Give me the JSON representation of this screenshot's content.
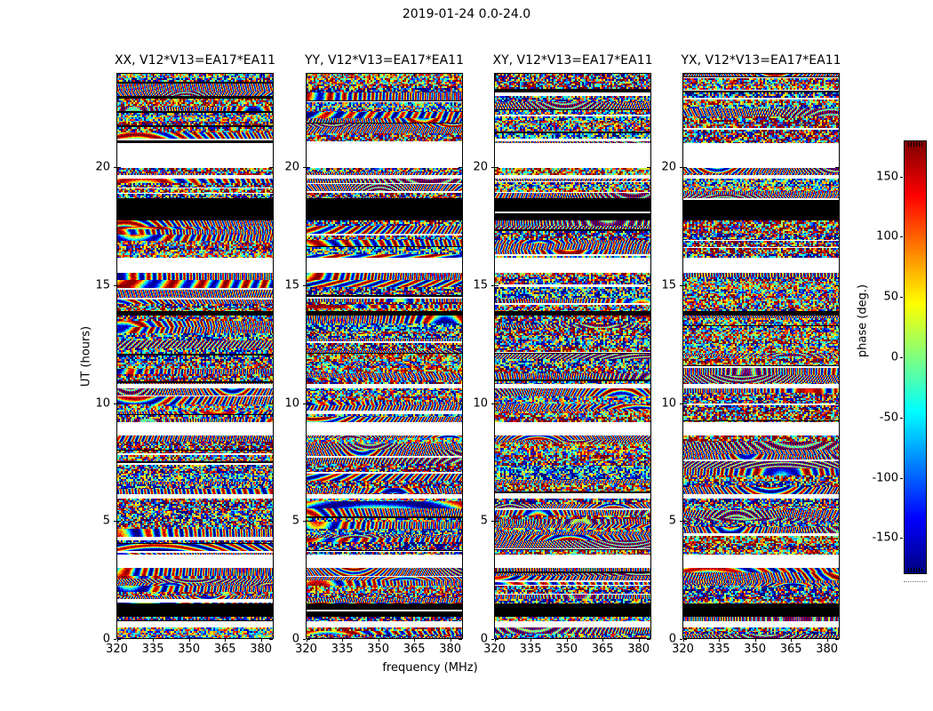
{
  "figure": {
    "title": "2019-01-24 0.0-24.0"
  },
  "chart_data": {
    "type": "heatmap",
    "title": "2019-01-24 0.0-24.0",
    "xlabel": "frequency (MHz)",
    "ylabel": "UT (hours)",
    "x_range": [
      319.8,
      385.3
    ],
    "y_range": [
      0,
      24
    ],
    "xticks": [
      320,
      335,
      350,
      365,
      380
    ],
    "yticks": [
      0,
      5,
      10,
      15,
      20
    ],
    "grid": false,
    "panels": [
      {
        "label": "XX",
        "title": "XX, V12*V13=EA17*EA11",
        "texture": "coherent"
      },
      {
        "label": "YY",
        "title": "YY, V12*V13=EA17*EA11",
        "texture": "coherent"
      },
      {
        "label": "XY",
        "title": "XY, V12*V13=EA17*EA11",
        "texture": "speckle"
      },
      {
        "label": "YX",
        "title": "YX, V12*V13=EA17*EA11",
        "texture": "speckle"
      }
    ],
    "colorbar": {
      "label": "phase (deg.)",
      "range": [
        -180,
        180
      ],
      "ticks": [
        -150,
        -100,
        -50,
        0,
        50,
        100,
        150
      ],
      "colormap": "jet"
    },
    "time_bands": [
      {
        "ut0": 21.06,
        "ut1": 24.0,
        "kind": "noise"
      },
      {
        "ut0": 20.0,
        "ut1": 21.06,
        "kind": "white"
      },
      {
        "ut0": 19.7,
        "ut1": 20.0,
        "kind": "noise"
      },
      {
        "ut0": 19.55,
        "ut1": 19.7,
        "kind": "white"
      },
      {
        "ut0": 18.72,
        "ut1": 19.55,
        "kind": "noise"
      },
      {
        "ut0": 17.78,
        "ut1": 18.72,
        "kind": "black"
      },
      {
        "ut0": 16.16,
        "ut1": 17.78,
        "kind": "noise"
      },
      {
        "ut0": 15.52,
        "ut1": 16.16,
        "kind": "white"
      },
      {
        "ut0": 13.9,
        "ut1": 15.52,
        "kind": "noise"
      },
      {
        "ut0": 13.71,
        "ut1": 13.9,
        "kind": "black"
      },
      {
        "ut0": 10.81,
        "ut1": 13.71,
        "kind": "noise"
      },
      {
        "ut0": 10.63,
        "ut1": 10.81,
        "kind": "white"
      },
      {
        "ut0": 9.19,
        "ut1": 10.63,
        "kind": "noise"
      },
      {
        "ut0": 8.63,
        "ut1": 9.19,
        "kind": "white"
      },
      {
        "ut0": 6.14,
        "ut1": 8.63,
        "kind": "noise"
      },
      {
        "ut0": 5.92,
        "ut1": 6.14,
        "kind": "white"
      },
      {
        "ut0": 3.54,
        "ut1": 5.92,
        "kind": "noise"
      },
      {
        "ut0": 2.98,
        "ut1": 3.54,
        "kind": "white"
      },
      {
        "ut0": 2.22,
        "ut1": 2.98,
        "kind": "fringes"
      },
      {
        "ut0": 1.47,
        "ut1": 2.22,
        "kind": "noise"
      },
      {
        "ut0": 0.9,
        "ut1": 1.47,
        "kind": "black"
      },
      {
        "ut0": 0.72,
        "ut1": 0.9,
        "kind": "noise"
      },
      {
        "ut0": 0.45,
        "ut1": 0.72,
        "kind": "white"
      },
      {
        "ut0": 0.0,
        "ut1": 0.45,
        "kind": "noise"
      }
    ]
  }
}
